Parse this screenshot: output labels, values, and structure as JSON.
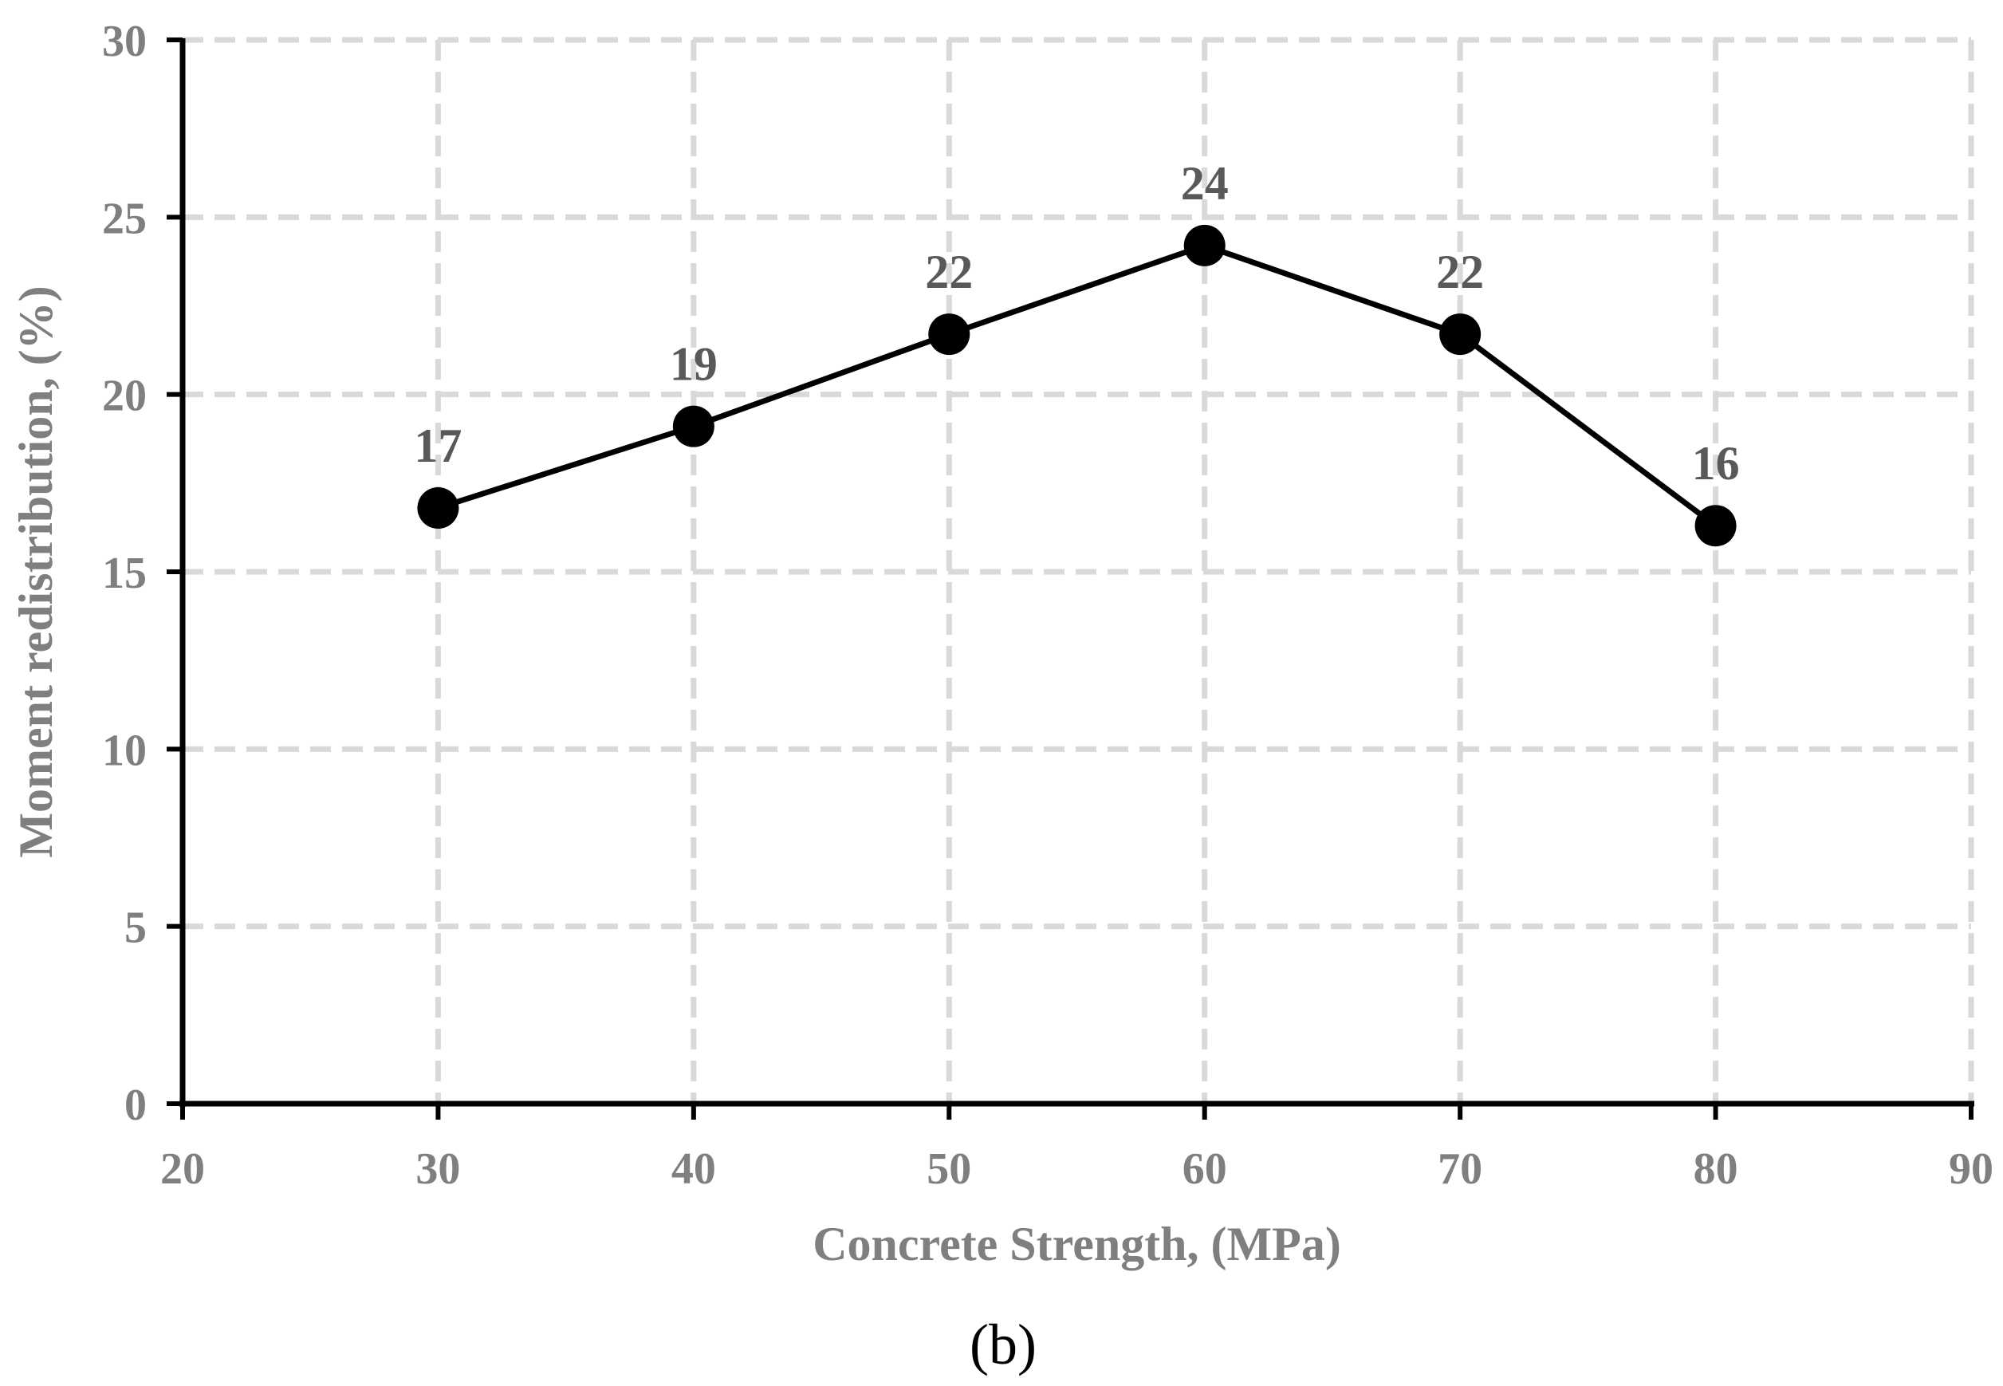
{
  "chart_data": {
    "type": "line",
    "caption": "(b)",
    "title": "",
    "xlabel": "Concrete Strength, (MPa)",
    "ylabel": "Moment redistribution, (%)",
    "xlim": [
      20,
      90
    ],
    "ylim": [
      0,
      30
    ],
    "xticks": [
      20,
      30,
      40,
      50,
      60,
      70,
      80,
      90
    ],
    "yticks": [
      0,
      5,
      10,
      15,
      20,
      25,
      30
    ],
    "grid": true,
    "legend": "none",
    "series": [
      {
        "name": "Moment redistribution",
        "x": [
          30,
          40,
          50,
          60,
          70,
          80
        ],
        "y": [
          16.8,
          19.1,
          21.7,
          24.2,
          21.7,
          16.3
        ],
        "labels": [
          "17",
          "19",
          "22",
          "24",
          "22",
          "16"
        ]
      }
    ],
    "colors": {
      "line": "#000000",
      "marker": "#000000",
      "grid": "#d9d9d9",
      "axis": "#000000",
      "tick_text": "#7f7f7f",
      "data_label": "#595959"
    }
  }
}
